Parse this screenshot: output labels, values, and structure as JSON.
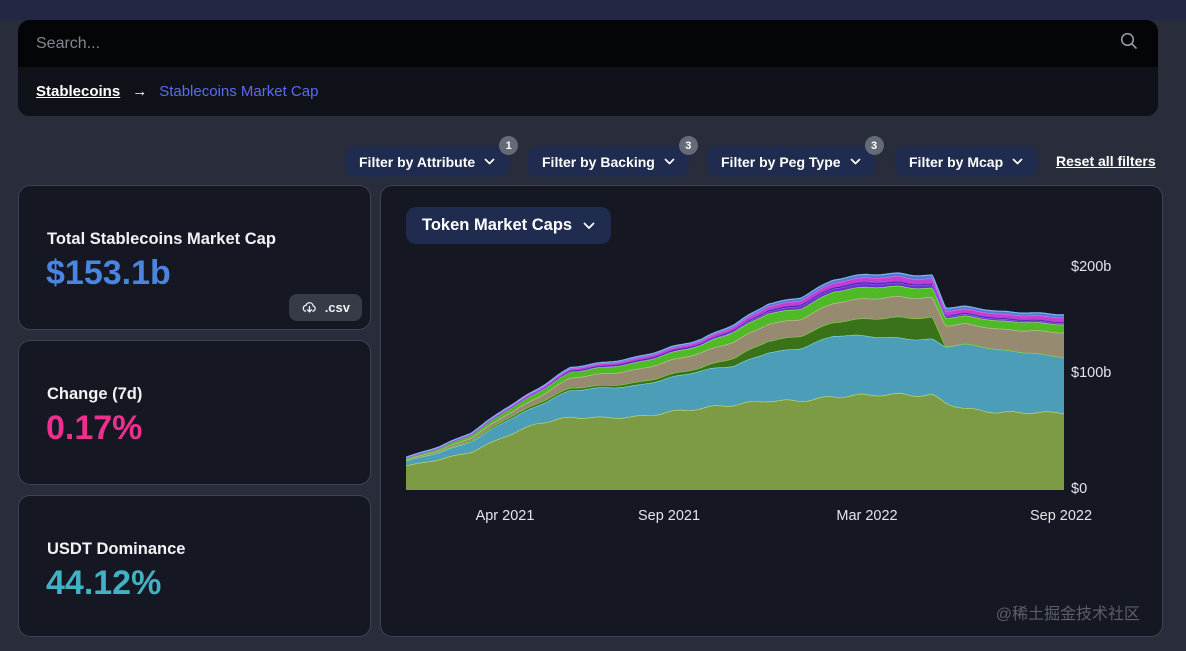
{
  "search": {
    "placeholder": "Search..."
  },
  "breadcrumb": {
    "root": "Stablecoins",
    "arrow": "→",
    "current": "Stablecoins Market Cap"
  },
  "filters": {
    "buttons": [
      {
        "label": "Filter by Attribute",
        "badge": "1"
      },
      {
        "label": "Filter by Backing",
        "badge": "3"
      },
      {
        "label": "Filter by Peg Type",
        "badge": "3"
      },
      {
        "label": "Filter by Mcap"
      }
    ],
    "reset_label": "Reset all filters"
  },
  "stats": [
    {
      "title": "Total Stablecoins Market Cap",
      "value": "$153.1b",
      "value_color": "#4a85e0",
      "download_label": ".csv"
    },
    {
      "title": "Change (7d)",
      "value": "0.17%",
      "value_color": "#ef2f8f"
    },
    {
      "title": "USDT Dominance",
      "value": "44.12%",
      "value_color": "#41b1c4"
    }
  ],
  "chart_panel": {
    "selector_label": "Token Market Caps"
  },
  "chart_data": {
    "type": "area",
    "stacked": true,
    "title": "Token Market Caps",
    "legend": "none",
    "grid": false,
    "x_range": [
      "Jan 2021",
      "Sep 2022"
    ],
    "x_tick_labels": [
      "Apr 2021",
      "Sep 2021",
      "Mar 2022",
      "Sep 2022"
    ],
    "x_tick_months": [
      3,
      8,
      14,
      20
    ],
    "y_tick_labels": [
      "$200b",
      "$100b",
      "$0"
    ],
    "ylim_billion_usd": [
      0,
      200
    ],
    "x_months": [
      0,
      1,
      2,
      3,
      4,
      5,
      6,
      7,
      8,
      9,
      10,
      11,
      12,
      13,
      14,
      15,
      16,
      16.4,
      17,
      18,
      19,
      20
    ],
    "series": [
      {
        "name": "layer-1-olive",
        "fill": "#7d9b45",
        "stroke": "#c2e178",
        "values_billion_usd": [
          21,
          26,
          33,
          47,
          58,
          62,
          62,
          64,
          68,
          70,
          73,
          78,
          78,
          80,
          81,
          83,
          83,
          76,
          70,
          66,
          67,
          68
        ]
      },
      {
        "name": "layer-2-teal",
        "fill": "#4c9db8",
        "stroke": "#8bdbd8",
        "values_billion_usd": [
          4,
          6,
          9,
          13,
          15,
          23,
          26,
          27,
          29,
          32,
          34,
          42,
          45,
          52,
          51,
          49,
          48,
          48,
          55,
          54,
          52,
          48
        ]
      },
      {
        "name": "layer-3-dark-green",
        "fill": "#3a7219",
        "stroke": "#7cd93c",
        "values_billion_usd": [
          0,
          0.4,
          1,
          1.6,
          2,
          2,
          2,
          2.5,
          2.7,
          2.8,
          7,
          10,
          10.5,
          11.5,
          15,
          18,
          18.5,
          0.3,
          0,
          0,
          0,
          0
        ]
      },
      {
        "name": "layer-4-tan",
        "fill": "#968a71",
        "stroke": "#cec2a2",
        "values_billion_usd": [
          1,
          1.5,
          2.5,
          3.5,
          5,
          9,
          10,
          11,
          12,
          13,
          14,
          14.5,
          14.5,
          17,
          17.5,
          17.5,
          17,
          18,
          17.5,
          17.8,
          19,
          21
        ]
      },
      {
        "name": "layer-5-bright-green",
        "fill": "#50b928",
        "stroke": "#96ef5a",
        "values_billion_usd": [
          1.2,
          1.8,
          2.5,
          3.5,
          4.5,
          5,
          5.5,
          6,
          6.5,
          6.5,
          8.5,
          9,
          9,
          9.8,
          9.8,
          8.8,
          8,
          6.5,
          6.8,
          7,
          7,
          6.9
        ]
      },
      {
        "name": "layer-6-purple",
        "fill": "#6c2fd6",
        "stroke": "#9b6cf5",
        "values_billion_usd": [
          0.1,
          0.1,
          0.1,
          0.1,
          0.2,
          0.2,
          0.3,
          0.3,
          0.4,
          0.5,
          1,
          1.7,
          2.6,
          2.7,
          2.9,
          2.7,
          2.6,
          1.5,
          1.4,
          1.4,
          1.4,
          1.4
        ]
      },
      {
        "name": "layer-7-violet",
        "fill": "#471e9e",
        "stroke": "#7a50e8",
        "values_billion_usd": [
          0.3,
          0.35,
          0.4,
          0.5,
          0.6,
          1.1,
          1.2,
          1.3,
          1.3,
          1.2,
          1.2,
          1.3,
          1.4,
          1.4,
          1.4,
          1.3,
          1.2,
          1.2,
          1.2,
          1.2,
          1.2,
          1
        ]
      },
      {
        "name": "layer-8-magenta",
        "fill": "#c43ed0",
        "stroke": "#ef6af2",
        "values_billion_usd": [
          0.4,
          0.5,
          0.8,
          1,
          1.3,
          1.5,
          1.5,
          1.8,
          1.8,
          2,
          2.5,
          3,
          3.3,
          3.6,
          3.9,
          4.2,
          4.2,
          3.6,
          3.3,
          3.3,
          3.3,
          3.6
        ]
      },
      {
        "name": "layer-9-light-blue",
        "fill": "#4e7ed2",
        "stroke": "#82b4f5",
        "values_billion_usd": [
          0.1,
          0.2,
          0.2,
          0.5,
          0.7,
          1,
          1,
          1.2,
          1.2,
          1.2,
          1.5,
          2,
          2.2,
          2.4,
          2.6,
          2.8,
          2.8,
          2.4,
          2.2,
          2.2,
          2.2,
          2.4
        ]
      }
    ]
  },
  "watermark": "@稀土掘金技术社区"
}
